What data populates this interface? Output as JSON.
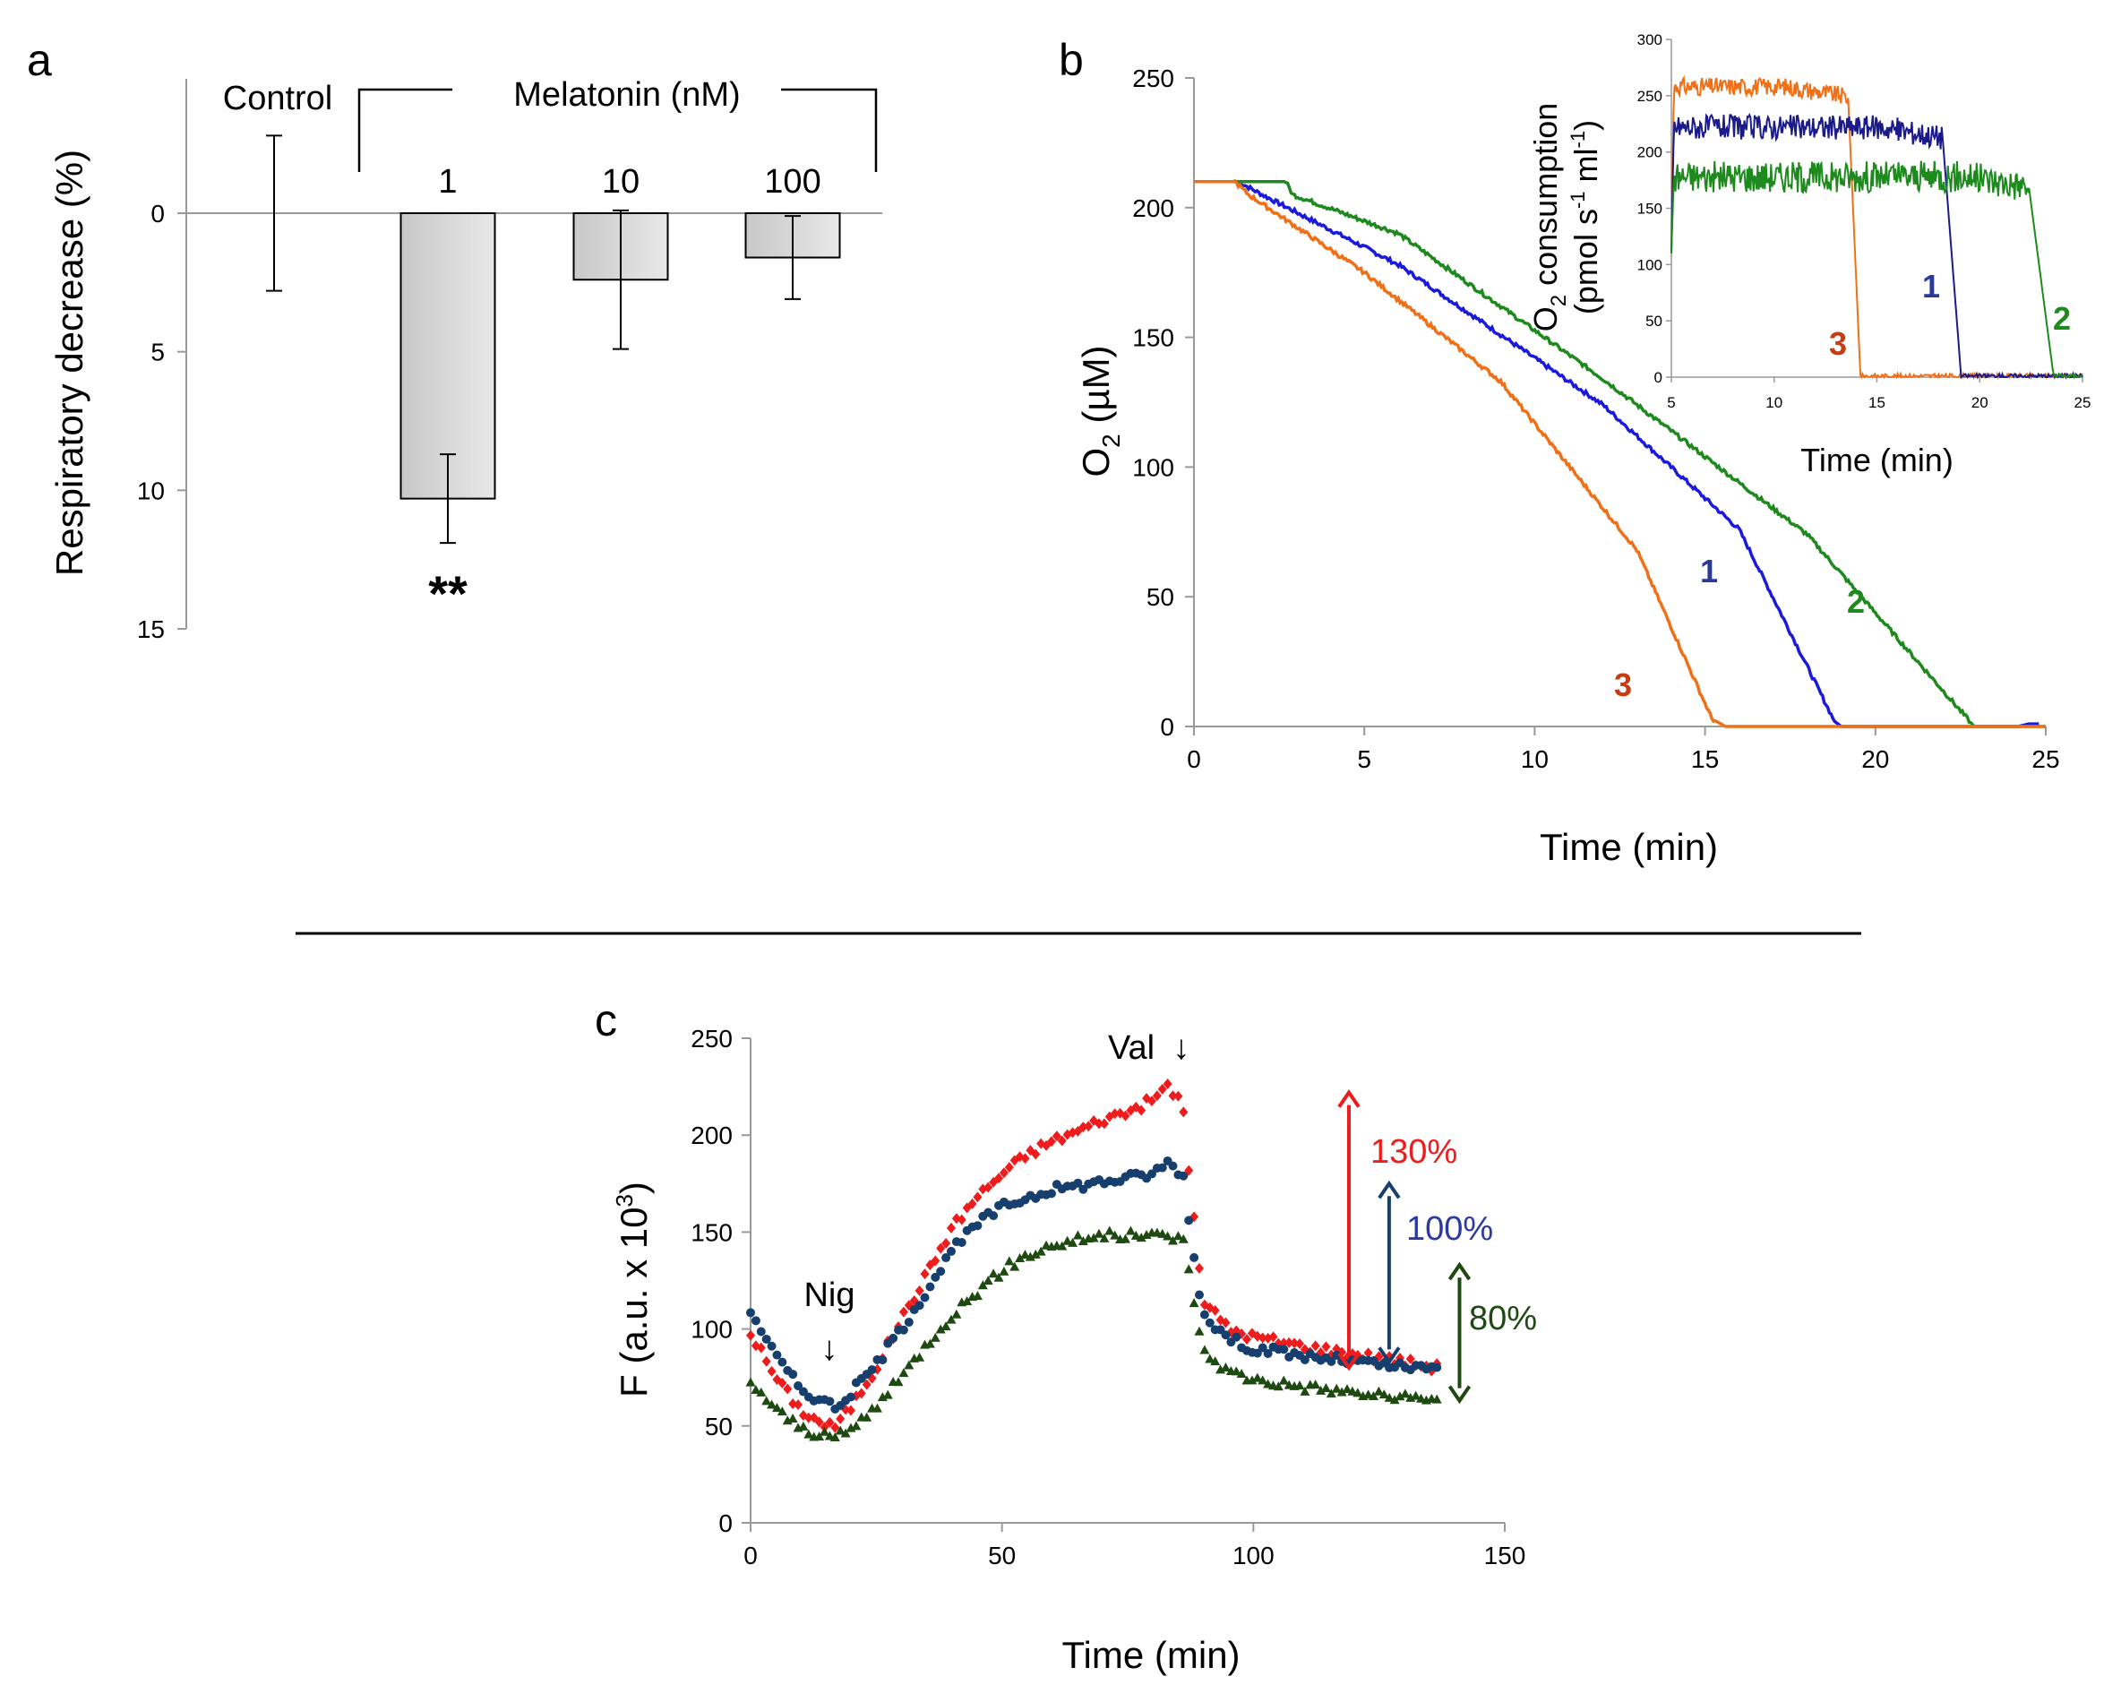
{
  "figure": {
    "separator": true
  },
  "chart_data": [
    {
      "panel": "a",
      "type": "bar",
      "ylabel": "Respiratory decrease (%)",
      "yaxis_inverted": true,
      "ylim": [
        -5,
        15
      ],
      "yticks": [
        0,
        5,
        10,
        15
      ],
      "group_labels": {
        "control": "Control",
        "melatonin": "Melatonin (nM)"
      },
      "categories": [
        "Control",
        "1",
        "10",
        "100"
      ],
      "values": [
        0,
        10.3,
        2.4,
        1.6
      ],
      "error": [
        2.8,
        1.6,
        2.5,
        1.5
      ],
      "bar_colors": [
        "#c8c8c8",
        "#e8e8e8"
      ],
      "significance": {
        "category": "1",
        "label": "**"
      }
    },
    {
      "panel": "b",
      "type": "line",
      "xlabel": "Time (min)",
      "ylabel": "O",
      "ylabel_sub": "2",
      "ylabel_unit": " (µM)",
      "xlim": [
        0,
        25
      ],
      "ylim": [
        0,
        250
      ],
      "xticks": [
        0,
        5,
        10,
        15,
        20,
        25
      ],
      "yticks": [
        0,
        50,
        100,
        150,
        200,
        250
      ],
      "series": [
        {
          "name": "1",
          "color": "#1a1adc",
          "label_color": "#2b3a9a",
          "points": [
            [
              0,
              210
            ],
            [
              1.3,
              210
            ],
            [
              2,
              205
            ],
            [
              6,
              178
            ],
            [
              12,
              124
            ],
            [
              16,
              76
            ],
            [
              18.8,
              2
            ],
            [
              19,
              0
            ],
            [
              24.2,
              0
            ],
            [
              24.5,
              1
            ],
            [
              24.8,
              1
            ]
          ]
        },
        {
          "name": "2",
          "color": "#1e8a1e",
          "label_color": "#1e8a1e",
          "points": [
            [
              0,
              210
            ],
            [
              2.7,
              210
            ],
            [
              2.9,
              205
            ],
            [
              6,
              190
            ],
            [
              12,
              134
            ],
            [
              18,
              74
            ],
            [
              22.5,
              6
            ],
            [
              22.9,
              0
            ],
            [
              25,
              0
            ]
          ]
        },
        {
          "name": "3",
          "color": "#f07018",
          "label_color": "#c83c14",
          "points": [
            [
              0,
              210
            ],
            [
              1.2,
              210
            ],
            [
              1.6,
              205
            ],
            [
              5,
              175
            ],
            [
              9,
              133
            ],
            [
              13,
              68
            ],
            [
              15.2,
              3
            ],
            [
              15.6,
              0
            ],
            [
              25,
              0
            ]
          ]
        }
      ],
      "inset": {
        "type": "line",
        "xlabel": "Time (min)",
        "ylabel_line1": "O",
        "ylabel_line1_sub": "2",
        "ylabel_line1_rest": " consumption",
        "ylabel_line2": "(pmol s",
        "ylabel_line2_sup1": "-1",
        "ylabel_line2_mid": " ml",
        "ylabel_line2_sup2": "-1",
        "ylabel_line2_end": ")",
        "xlim": [
          5,
          25
        ],
        "ylim": [
          0,
          300
        ],
        "xticks": [
          5,
          10,
          15,
          20,
          25
        ],
        "yticks": [
          0,
          50,
          100,
          150,
          200,
          250,
          300
        ],
        "series": [
          {
            "name": "3",
            "color": "#f07018",
            "label_color": "#c83c14",
            "level": 258,
            "noise": 8,
            "start": 5,
            "drop_start": 13.6,
            "drop_end": 14.2,
            "end": 25
          },
          {
            "name": "1",
            "color": "#1a1a8a",
            "label_color": "#2b3a9a",
            "level": 222,
            "noise": 11,
            "start": 5,
            "drop_start": 18.2,
            "drop_end": 19.1,
            "end": 25
          },
          {
            "name": "2",
            "color": "#1e8a1e",
            "label_color": "#1e8a1e",
            "level": 178,
            "noise": 14,
            "start": 5,
            "drop_start": 22.4,
            "drop_end": 23.6,
            "end": 25
          }
        ]
      }
    },
    {
      "panel": "c",
      "type": "scatter",
      "xlabel": "Time (min)",
      "ylabel": "F (a.u. x 10",
      "ylabel_sup": "3",
      "ylabel_end": ")",
      "xlim": [
        0,
        150
      ],
      "ylim": [
        0,
        250
      ],
      "xticks": [
        0,
        50,
        100,
        150
      ],
      "yticks": [
        0,
        50,
        100,
        150,
        200,
        250
      ],
      "annotations": {
        "nig": "Nig",
        "val": "Val",
        "down_arrow": "↓"
      },
      "series": [
        {
          "name": "red",
          "marker": "diamond",
          "color": "#ee1c1c",
          "points": [
            [
              0,
              98
            ],
            [
              5,
              75
            ],
            [
              10,
              58
            ],
            [
              15,
              50
            ],
            [
              17,
              50
            ],
            [
              20,
              60
            ],
            [
              25,
              80
            ],
            [
              30,
              105
            ],
            [
              35,
              128
            ],
            [
              40,
              152
            ],
            [
              45,
              168
            ],
            [
              50,
              180
            ],
            [
              55,
              190
            ],
            [
              60,
              197
            ],
            [
              65,
              202
            ],
            [
              70,
              208
            ],
            [
              75,
              212
            ],
            [
              80,
              218
            ],
            [
              83,
              226
            ],
            [
              86,
              215
            ],
            [
              88,
              160
            ],
            [
              90,
              115
            ],
            [
              95,
              100
            ],
            [
              100,
              96
            ],
            [
              110,
              91
            ],
            [
              120,
              87
            ],
            [
              130,
              83
            ],
            [
              137,
              80
            ]
          ]
        },
        {
          "name": "blue",
          "marker": "circle",
          "color": "#173f6e",
          "points": [
            [
              0,
              110
            ],
            [
              5,
              86
            ],
            [
              10,
              69
            ],
            [
              15,
              62
            ],
            [
              17,
              60
            ],
            [
              20,
              67
            ],
            [
              25,
              82
            ],
            [
              30,
              100
            ],
            [
              35,
              120
            ],
            [
              40,
              140
            ],
            [
              45,
              154
            ],
            [
              50,
              163
            ],
            [
              55,
              168
            ],
            [
              60,
              172
            ],
            [
              65,
              174
            ],
            [
              70,
              176
            ],
            [
              75,
              178
            ],
            [
              80,
              180
            ],
            [
              83,
              186
            ],
            [
              86,
              180
            ],
            [
              88,
              140
            ],
            [
              90,
              108
            ],
            [
              95,
              95
            ],
            [
              100,
              90
            ],
            [
              110,
              86
            ],
            [
              120,
              83
            ],
            [
              130,
              80
            ],
            [
              137,
              79
            ]
          ]
        },
        {
          "name": "green",
          "marker": "triangle",
          "color": "#1e4a12",
          "points": [
            [
              0,
              73
            ],
            [
              5,
              58
            ],
            [
              10,
              49
            ],
            [
              15,
              44
            ],
            [
              17,
              44
            ],
            [
              20,
              48
            ],
            [
              25,
              60
            ],
            [
              30,
              75
            ],
            [
              35,
              92
            ],
            [
              40,
              107
            ],
            [
              45,
              119
            ],
            [
              50,
              130
            ],
            [
              55,
              138
            ],
            [
              60,
              143
            ],
            [
              65,
              146
            ],
            [
              70,
              148
            ],
            [
              75,
              148
            ],
            [
              80,
              148
            ],
            [
              83,
              148
            ],
            [
              86,
              146
            ],
            [
              88,
              118
            ],
            [
              90,
              88
            ],
            [
              95,
              78
            ],
            [
              100,
              74
            ],
            [
              110,
              70
            ],
            [
              120,
              67
            ],
            [
              130,
              64
            ],
            [
              137,
              63
            ]
          ]
        }
      ],
      "arrows": [
        {
          "label": "130%",
          "color": "#ee1c1c",
          "x": 119,
          "y_top": 222,
          "y_bottom": 80
        },
        {
          "label": "100%",
          "color": "#173f6e",
          "label_color": "#2b3aa0",
          "x": 127,
          "y_top": 175,
          "y_bottom": 83
        },
        {
          "label": "80%",
          "color": "#1e4a12",
          "x": 141,
          "y_top": 133,
          "y_bottom": 63
        }
      ]
    }
  ]
}
